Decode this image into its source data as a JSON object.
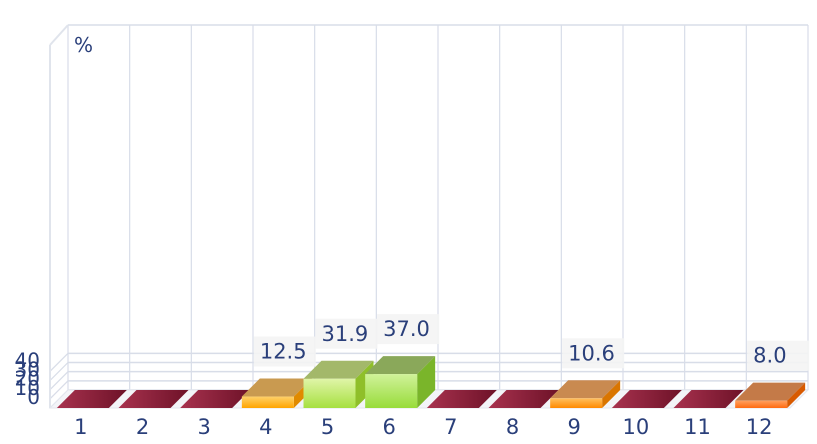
{
  "chart_data": {
    "type": "bar",
    "unit_label": "%",
    "categories": [
      "1",
      "2",
      "3",
      "4",
      "5",
      "6",
      "7",
      "8",
      "9",
      "10",
      "11",
      "12"
    ],
    "values": [
      0,
      0,
      0,
      12.5,
      31.9,
      37.0,
      0,
      0,
      10.6,
      0,
      0,
      8.0
    ],
    "data_labels": [
      "",
      "",
      "",
      "12.5",
      "31.9",
      "37.0",
      "",
      "",
      "10.6",
      "",
      "",
      "8.0"
    ],
    "y_ticks": [
      0,
      10,
      20,
      30,
      40
    ],
    "ylim": [
      0,
      40
    ],
    "grid": true,
    "legend": "none",
    "colors": {
      "zero": "#8c1c3a",
      "orange_light": "#ffc64a",
      "orange_mid": "#ffa41a",
      "orange_dark": "#ff7a1a",
      "green_light": "#d4ef9a",
      "green_mid": "#b8e86a",
      "green_dark": "#a0df4a",
      "axis_text": "#2a3f7a",
      "grid": "#d8dde8"
    }
  }
}
